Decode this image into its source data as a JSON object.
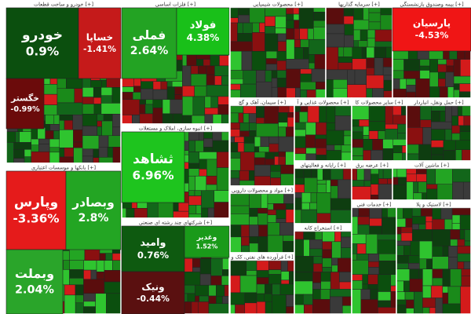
{
  "sectors": [
    {
      "title": "خودرو و ساخت قطعات [+]",
      "tiles": [
        {
          "name": "خودرو",
          "change": "0.9%",
          "color": "#0b4f0e"
        },
        {
          "name": "خساپا",
          "change": "-1.41%",
          "color": "#c51a1a"
        },
        {
          "name": "خگستر",
          "change": "-0.99%",
          "color": "#6b0b0b"
        }
      ]
    },
    {
      "title": "بانکها و موسسات اعتباری [+]",
      "tiles": [
        {
          "name": "وپارس",
          "change": "-3.36%",
          "color": "#e51b1b"
        },
        {
          "name": "وبصادر",
          "change": "2.8%",
          "color": "#23a523"
        },
        {
          "name": "وبملت",
          "change": "2.04%",
          "color": "#2aa52a"
        }
      ]
    },
    {
      "title": "فلزات اساسی [+]",
      "tiles": [
        {
          "name": "فملی",
          "change": "2.64%",
          "color": "#23a323"
        },
        {
          "name": "فولاد",
          "change": "4.38%",
          "color": "#19c019"
        }
      ]
    },
    {
      "title": "انبوه سازی، املاک و مستغلات [+]",
      "tiles": [
        {
          "name": "ثشاهد",
          "change": "6.96%",
          "color": "#1ec41e"
        }
      ]
    },
    {
      "title": "شرکتهای چند رشته ای صنعتی [+]",
      "tiles": [
        {
          "name": "وامید",
          "change": "0.76%",
          "color": "#0e5a10"
        },
        {
          "name": "ونیک",
          "change": "-0.44%",
          "color": "#5a1010"
        },
        {
          "name": "وغدیر",
          "change": "1.52%",
          "color": "#1a9a1a"
        }
      ]
    },
    {
      "title": "محصولات شیمیایی [+]",
      "tiles": []
    },
    {
      "title": "سرمایه گذاریها [+]",
      "tiles": []
    },
    {
      "title": "بیمه وصندوق بازنشستگی [+]",
      "tiles": [
        {
          "name": "پارسیان",
          "change": "-4.53%",
          "color": "#f01515"
        }
      ]
    },
    {
      "title": "سیمان، آهک و گچ [+]",
      "tiles": []
    },
    {
      "title": "محصولات غذایی و آ [+]",
      "tiles": []
    },
    {
      "title": "سایر محصولات کا [+]",
      "tiles": []
    },
    {
      "title": "حمل ونقل، انباردار [+]",
      "tiles": []
    },
    {
      "title": "مواد و محصولات دارویی [+]",
      "tiles": []
    },
    {
      "title": "فرآورده های نفتی، کک و [+]",
      "tiles": []
    },
    {
      "title": "رایانه و فعالیتهای [+]",
      "tiles": []
    },
    {
      "title": "عرضه برق [+]",
      "tiles": []
    },
    {
      "title": "ماشین آلات [+]",
      "tiles": []
    },
    {
      "title": "استخراج کانه [+]",
      "tiles": []
    },
    {
      "title": "خدمات فنی [+]",
      "tiles": []
    },
    {
      "title": "لاستیک و پلا [+]",
      "tiles": []
    }
  ]
}
